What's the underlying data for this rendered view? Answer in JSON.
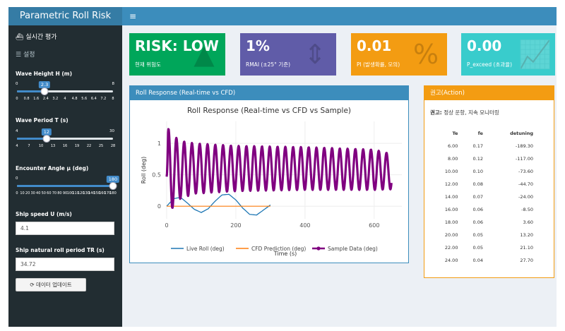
{
  "app": {
    "title": "Parametric Roll Risk",
    "menu_icon": "hamburger-icon"
  },
  "sidebar": {
    "items": [
      {
        "label": "실시간 평가",
        "icon": "ship-icon"
      },
      {
        "label": "설정",
        "icon": "sliders-icon"
      }
    ],
    "controls": {
      "wave_height": {
        "label": "Wave Height H (m)",
        "min": "0",
        "max": "8",
        "value": "2.3",
        "fraction": 0.2875,
        "ticks": [
          "0",
          "0.8",
          "1.6",
          "2.4",
          "3.2",
          "4",
          "4.8",
          "5.6",
          "6.4",
          "7.2",
          "8"
        ]
      },
      "wave_period": {
        "label": "Wave Period T (s)",
        "min": "4",
        "max": "30",
        "value": "12",
        "fraction": 0.3077,
        "ticks": [
          "4",
          "7",
          "10",
          "13",
          "16",
          "19",
          "22",
          "25",
          "28"
        ]
      },
      "encounter_angle": {
        "label": "Encounter Angle μ (deg)",
        "min": "0",
        "max": "180",
        "value": "180",
        "fraction": 1.0,
        "ticks": [
          "0",
          "10",
          "20",
          "30",
          "40",
          "50",
          "60",
          "70",
          "80",
          "90",
          "100",
          "110",
          "120",
          "130",
          "140",
          "150",
          "160",
          "170",
          "180"
        ]
      },
      "ship_speed": {
        "label": "Ship speed U (m/s)",
        "value": "4.1"
      },
      "roll_period": {
        "label": "Ship natural roll period TR (s)",
        "value": "34.72"
      },
      "update_button": {
        "label": "데이터 업데이트",
        "icon": "refresh-icon"
      }
    }
  },
  "value_boxes": [
    {
      "value": "RISK: LOW",
      "subtitle": "현재 위험도",
      "color": "#00a65a",
      "icon": "warning-icon"
    },
    {
      "value": "1%",
      "subtitle": "RMAI (±25° 기준)",
      "color": "#605ca8",
      "icon": "arrows-v-icon"
    },
    {
      "value": "0.01",
      "subtitle": "PI (발생확률, 모의)",
      "color": "#f39c12",
      "icon": "percent-icon"
    },
    {
      "value": "0.00",
      "subtitle": "P_exceed (초과율)",
      "color": "#39cccc",
      "icon": "line-chart-icon"
    }
  ],
  "roll_box": {
    "header": "Roll Response (Real-time vs CFD)",
    "header_color": "#3c8dbc"
  },
  "advice_box": {
    "header": "권고(Action)",
    "header_color": "#f39c12",
    "line_bold": "권고:",
    "line_text": " 정상 운항, 지속 모니터링",
    "columns": [
      "Te",
      "fe",
      "detuning"
    ],
    "rows": [
      [
        "6.00",
        "0.17",
        "-189.30"
      ],
      [
        "8.00",
        "0.12",
        "-117.00"
      ],
      [
        "10.00",
        "0.10",
        "-73.60"
      ],
      [
        "12.00",
        "0.08",
        "-44.70"
      ],
      [
        "14.00",
        "0.07",
        "-24.00"
      ],
      [
        "16.00",
        "0.06",
        "-8.50"
      ],
      [
        "18.00",
        "0.06",
        "3.60"
      ],
      [
        "20.00",
        "0.05",
        "13.20"
      ],
      [
        "22.00",
        "0.05",
        "21.10"
      ],
      [
        "24.00",
        "0.04",
        "27.70"
      ]
    ]
  },
  "chart_data": {
    "type": "line",
    "title": "Roll Response (Real-time vs CFD vs Sample)",
    "xlabel": "Time (s)",
    "ylabel": "Roll (deg)",
    "xlim": [
      0,
      680
    ],
    "ylim": [
      -0.2,
      1.35
    ],
    "xticks": [
      "0",
      "200",
      "400",
      "600"
    ],
    "yticks": [
      "0",
      "0.5",
      "1"
    ],
    "legend_position": "bottom",
    "series": [
      {
        "name": "Live Roll (deg)",
        "color": "#1f77b4",
        "x": [
          0,
          20,
          40,
          60,
          80,
          100,
          120,
          140,
          160,
          180,
          200,
          220,
          240,
          260,
          280,
          300
        ],
        "y": [
          0,
          0.12,
          0.14,
          0.05,
          -0.05,
          -0.1,
          -0.04,
          0.08,
          0.18,
          0.19,
          0.1,
          -0.03,
          -0.13,
          -0.14,
          -0.06,
          0.02
        ]
      },
      {
        "name": "CFD Prediction (deg)",
        "color": "#ff7f0e",
        "x": [
          0,
          300
        ],
        "y": [
          0,
          0
        ]
      },
      {
        "name": "Sample Data (deg)",
        "color": "#800080",
        "period": 22.5,
        "x_start": 0,
        "x_end": 650,
        "x": [
          0,
          4,
          8,
          20,
          40,
          80,
          200,
          400,
          600,
          650
        ],
        "center": [
          0.47,
          0.5,
          0.52,
          0.57,
          0.58,
          0.6,
          0.6,
          0.6,
          0.58,
          0.55
        ],
        "amplitude": [
          0.0,
          0.75,
          0.68,
          0.55,
          0.46,
          0.4,
          0.36,
          0.34,
          0.32,
          0.28
        ]
      }
    ]
  }
}
